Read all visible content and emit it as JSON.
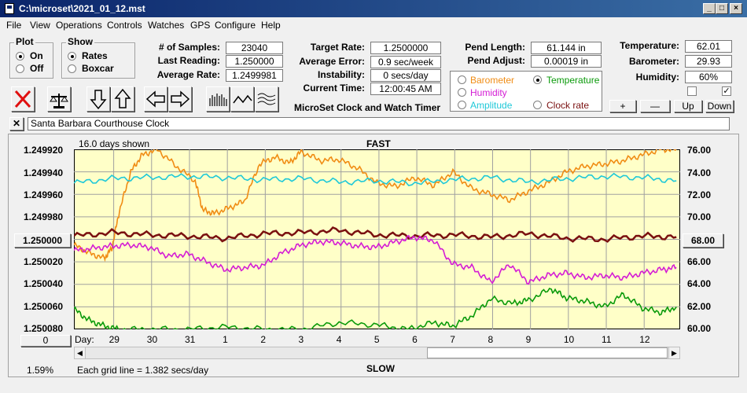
{
  "window": {
    "title": "C:\\microset\\2021_01_12.mst"
  },
  "menu": [
    "File",
    "View",
    "Operations",
    "Controls",
    "Watches",
    "GPS",
    "Configure",
    "Help"
  ],
  "plot_group": {
    "title": "Plot",
    "options": [
      "On",
      "Off"
    ],
    "selected": "On"
  },
  "show_group": {
    "title": "Show",
    "options": [
      "Rates",
      "Boxcar"
    ],
    "selected": "Rates"
  },
  "stats": {
    "samples_label": "# of Samples:",
    "samples": "23040",
    "last_label": "Last Reading:",
    "last": "1.250000",
    "avg_label": "Average Rate:",
    "avg": "1.2499981"
  },
  "rates": {
    "target_label": "Target Rate:",
    "target": "1.2500000",
    "err_label": "Average Error:",
    "err": "0.9 sec/week",
    "inst_label": "Instability:",
    "inst": "0 secs/day",
    "time_label": "Current Time:",
    "time": "12:00:45 AM"
  },
  "subtitle": "MicroSet Clock and Watch Timer",
  "pendulum": {
    "len_label": "Pend Length:",
    "len": "61.144 in",
    "adj_label": "Pend Adjust:",
    "adj": "0.00019 in"
  },
  "sensor_options": [
    {
      "label": "Barometer",
      "color": "#f08c14",
      "selected": false
    },
    {
      "label": "Temperature",
      "color": "#0a9a0a",
      "selected": true
    },
    {
      "label": "Humidity",
      "color": "#d41cd4",
      "selected": false
    },
    {
      "label": "Amplitude",
      "color": "#1ec8d8",
      "selected": false
    },
    {
      "label": "Clock rate",
      "color": "#7a1010",
      "selected": false
    }
  ],
  "env": {
    "temp_label": "Temperature:",
    "temp": "62.01",
    "baro_label": "Barometer:",
    "baro": "29.93",
    "hum_label": "Humidity:",
    "hum": "60%"
  },
  "scale_buttons": [
    "+",
    "—",
    "Up",
    "Down"
  ],
  "watch_name": "Santa Barbara Courthouse Clock",
  "chart_panel": {
    "days_shown": "16.0 days shown",
    "top_label": "FAST",
    "bottom_label": "SLOW",
    "left_button": "1.250000",
    "right_button": "68.00",
    "zero_button": "0",
    "grid_note": "Each grid line = 1.382 secs/day",
    "percent": "1.59%",
    "day_label": "Day:"
  },
  "chart_data": {
    "type": "line",
    "y_left_ticks": [
      "1.249920",
      "1.249940",
      "1.249960",
      "1.249980",
      "1.250000",
      "1.250020",
      "1.250040",
      "1.250060",
      "1.250080"
    ],
    "y_right_ticks": [
      "76.00",
      "74.00",
      "72.00",
      "70.00",
      "68.00",
      "66.00",
      "64.00",
      "62.00",
      "60.00"
    ],
    "x_ticks": [
      "29",
      "30",
      "31",
      "1",
      "2",
      "3",
      "4",
      "5",
      "6",
      "7",
      "8",
      "9",
      "10",
      "11",
      "12"
    ],
    "series": [
      {
        "name": "Barometer",
        "color": "#f08c14",
        "x": [
          0,
          0.4,
          0.8,
          1.0,
          1.2,
          1.5,
          1.8,
          2.2,
          2.7,
          3.2,
          3.4,
          3.7,
          4.1,
          4.5,
          4.9,
          5.3,
          5.7,
          6.0,
          6.5,
          7.0,
          7.5,
          8.0,
          8.5,
          9.0,
          9.5,
          10.0,
          10.5,
          11.0,
          11.5,
          12.0,
          12.5,
          13.0,
          13.5,
          14.0,
          14.5,
          15.0,
          15.5,
          15.9
        ],
        "y": [
          67.5,
          66.8,
          66.3,
          67.2,
          70.5,
          74.0,
          75.5,
          76.0,
          74.5,
          73.2,
          70.6,
          70.3,
          70.8,
          71.4,
          74.7,
          75.3,
          74.8,
          75.8,
          75.0,
          75.1,
          74.3,
          73.0,
          72.7,
          73.5,
          72.8,
          74.0,
          72.5,
          72.0,
          71.5,
          72.3,
          73.0,
          74.0,
          74.5,
          74.7,
          75.0,
          75.5,
          76.0,
          76.0
        ]
      },
      {
        "name": "Amplitude",
        "color": "#1ec8d8",
        "x": [
          0,
          1,
          2,
          3,
          4,
          5,
          6,
          7,
          8,
          9,
          10,
          11,
          12,
          13,
          14,
          15,
          15.9
        ],
        "y": [
          73.0,
          73.4,
          73.5,
          73.6,
          73.5,
          73.3,
          73.4,
          73.1,
          73.2,
          73.0,
          73.3,
          73.5,
          73.1,
          73.4,
          73.6,
          73.5,
          73.2
        ]
      },
      {
        "name": "Clock rate",
        "color": "#7a1010",
        "x": [
          0,
          1,
          2,
          3,
          4,
          5,
          6,
          7,
          8,
          9,
          10,
          11,
          12,
          13,
          14,
          15,
          15.9
        ],
        "y": [
          68.3,
          68.6,
          68.4,
          68.3,
          68.1,
          68.5,
          68.6,
          68.8,
          68.4,
          68.3,
          68.4,
          68.2,
          68.5,
          68.1,
          68.0,
          68.3,
          68.2
        ]
      },
      {
        "name": "Humidity",
        "color": "#d41cd4",
        "x": [
          0,
          0.5,
          1.0,
          1.5,
          2.0,
          2.5,
          3.0,
          3.5,
          4.0,
          4.5,
          5.0,
          5.5,
          6.0,
          6.5,
          7.0,
          7.5,
          8.0,
          8.5,
          9.0,
          9.5,
          10.0,
          10.5,
          11.0,
          11.5,
          12.0,
          12.5,
          13.0,
          13.5,
          14.0,
          14.5,
          15.0,
          15.5,
          15.9
        ],
        "y": [
          67.0,
          67.2,
          67.4,
          67.5,
          67.3,
          66.5,
          66.7,
          66.0,
          65.3,
          65.5,
          65.7,
          66.8,
          67.5,
          67.8,
          67.7,
          67.4,
          67.3,
          67.8,
          68.2,
          67.9,
          65.8,
          65.5,
          64.2,
          65.8,
          64.2,
          64.8,
          65.0,
          64.6,
          64.8,
          64.6,
          65.0,
          65.3,
          65.5
        ]
      },
      {
        "name": "Temperature",
        "color": "#0a9a0a",
        "x": [
          0,
          0.4,
          0.8,
          1.2,
          2.0,
          3.0,
          4.0,
          5.0,
          6.0,
          7.0,
          8.0,
          8.8,
          9.5,
          10.0,
          10.5,
          11.0,
          11.6,
          12.0,
          12.6,
          13.0,
          13.5,
          14.0,
          14.5,
          15.0,
          15.5,
          15.9
        ],
        "y": [
          61.8,
          60.8,
          60.3,
          60.0,
          60.0,
          60.0,
          60.2,
          60.0,
          60.0,
          60.6,
          60.4,
          60.0,
          60.6,
          60.3,
          61.2,
          62.7,
          62.3,
          62.6,
          63.6,
          62.8,
          62.5,
          62.0,
          63.1,
          61.9,
          61.5,
          62.0
        ]
      }
    ],
    "y_range_right": [
      60,
      76
    ],
    "x_range_days": [
      0,
      16
    ],
    "grid": true
  }
}
